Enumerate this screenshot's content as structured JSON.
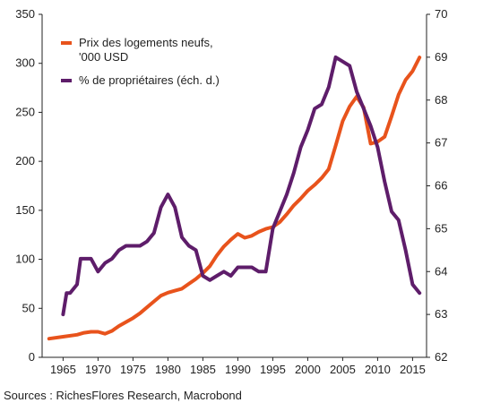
{
  "chart_data": {
    "type": "line",
    "x_range": [
      1962,
      2017
    ],
    "x_ticks": [
      "1965",
      "1970",
      "1975",
      "1980",
      "1985",
      "1990",
      "1995",
      "2000",
      "2005",
      "2010",
      "2015"
    ],
    "y_left": {
      "range": [
        0,
        350
      ],
      "ticks": [
        "0",
        "50",
        "100",
        "150",
        "200",
        "250",
        "300",
        "350"
      ]
    },
    "y_right": {
      "range": [
        62,
        70
      ],
      "ticks": [
        "62",
        "63",
        "64",
        "65",
        "66",
        "67",
        "68",
        "69",
        "70"
      ]
    },
    "legend_position": "top-left",
    "series": [
      {
        "name": "Prix des logements neufs, '000 USD",
        "legend_lines": [
          "Prix des logements neufs,",
          "'000 USD"
        ],
        "axis": "left",
        "color": "#e8531c",
        "points": [
          [
            1963,
            19
          ],
          [
            1965,
            21
          ],
          [
            1967,
            23
          ],
          [
            1968,
            25
          ],
          [
            1969,
            26
          ],
          [
            1970,
            26
          ],
          [
            1971,
            24
          ],
          [
            1972,
            27
          ],
          [
            1973,
            32
          ],
          [
            1974,
            36
          ],
          [
            1975,
            40
          ],
          [
            1976,
            45
          ],
          [
            1977,
            51
          ],
          [
            1978,
            57
          ],
          [
            1979,
            63
          ],
          [
            1980,
            66
          ],
          [
            1981,
            68
          ],
          [
            1982,
            70
          ],
          [
            1983,
            75
          ],
          [
            1984,
            80
          ],
          [
            1985,
            86
          ],
          [
            1986,
            93
          ],
          [
            1987,
            104
          ],
          [
            1988,
            113
          ],
          [
            1989,
            120
          ],
          [
            1990,
            126
          ],
          [
            1991,
            122
          ],
          [
            1992,
            124
          ],
          [
            1993,
            128
          ],
          [
            1994,
            131
          ],
          [
            1995,
            133
          ],
          [
            1996,
            138
          ],
          [
            1997,
            146
          ],
          [
            1998,
            155
          ],
          [
            1999,
            162
          ],
          [
            2000,
            170
          ],
          [
            2001,
            176
          ],
          [
            2002,
            183
          ],
          [
            2003,
            192
          ],
          [
            2004,
            216
          ],
          [
            2005,
            241
          ],
          [
            2006,
            256
          ],
          [
            2007,
            266
          ],
          [
            2008,
            255
          ],
          [
            2009,
            218
          ],
          [
            2010,
            220
          ],
          [
            2011,
            225
          ],
          [
            2012,
            246
          ],
          [
            2013,
            268
          ],
          [
            2014,
            283
          ],
          [
            2015,
            292
          ],
          [
            2016,
            306
          ]
        ]
      },
      {
        "name": "% de propriétaires (éch. d.)",
        "legend_lines": [
          "% de propriétaires (éch. d.)"
        ],
        "axis": "right",
        "color": "#5e1d6a",
        "points": [
          [
            1965,
            63.0
          ],
          [
            1965.5,
            63.5
          ],
          [
            1966,
            63.5
          ],
          [
            1967,
            63.7
          ],
          [
            1967.5,
            64.3
          ],
          [
            1969,
            64.3
          ],
          [
            1970,
            64.0
          ],
          [
            1971,
            64.2
          ],
          [
            1972,
            64.3
          ],
          [
            1973,
            64.5
          ],
          [
            1974,
            64.6
          ],
          [
            1975,
            64.6
          ],
          [
            1976,
            64.6
          ],
          [
            1977,
            64.7
          ],
          [
            1978,
            64.9
          ],
          [
            1979,
            65.5
          ],
          [
            1980,
            65.8
          ],
          [
            1981,
            65.5
          ],
          [
            1982,
            64.8
          ],
          [
            1983,
            64.6
          ],
          [
            1984,
            64.5
          ],
          [
            1985,
            63.9
          ],
          [
            1986,
            63.8
          ],
          [
            1987,
            63.9
          ],
          [
            1988,
            64.0
          ],
          [
            1989,
            63.9
          ],
          [
            1990,
            64.1
          ],
          [
            1991,
            64.1
          ],
          [
            1992,
            64.1
          ],
          [
            1993,
            64.0
          ],
          [
            1994,
            64.0
          ],
          [
            1995,
            65.0
          ],
          [
            1996,
            65.4
          ],
          [
            1997,
            65.8
          ],
          [
            1998,
            66.3
          ],
          [
            1999,
            66.9
          ],
          [
            2000,
            67.3
          ],
          [
            2001,
            67.8
          ],
          [
            2002,
            67.9
          ],
          [
            2003,
            68.3
          ],
          [
            2004,
            69.0
          ],
          [
            2005,
            68.9
          ],
          [
            2006,
            68.8
          ],
          [
            2007,
            68.2
          ],
          [
            2008,
            67.8
          ],
          [
            2009,
            67.4
          ],
          [
            2010,
            66.9
          ],
          [
            2011,
            66.1
          ],
          [
            2012,
            65.4
          ],
          [
            2013,
            65.2
          ],
          [
            2014,
            64.5
          ],
          [
            2015,
            63.7
          ],
          [
            2016,
            63.5
          ]
        ]
      }
    ]
  },
  "source": "Sources : RichesFlores Research, Macrobond"
}
